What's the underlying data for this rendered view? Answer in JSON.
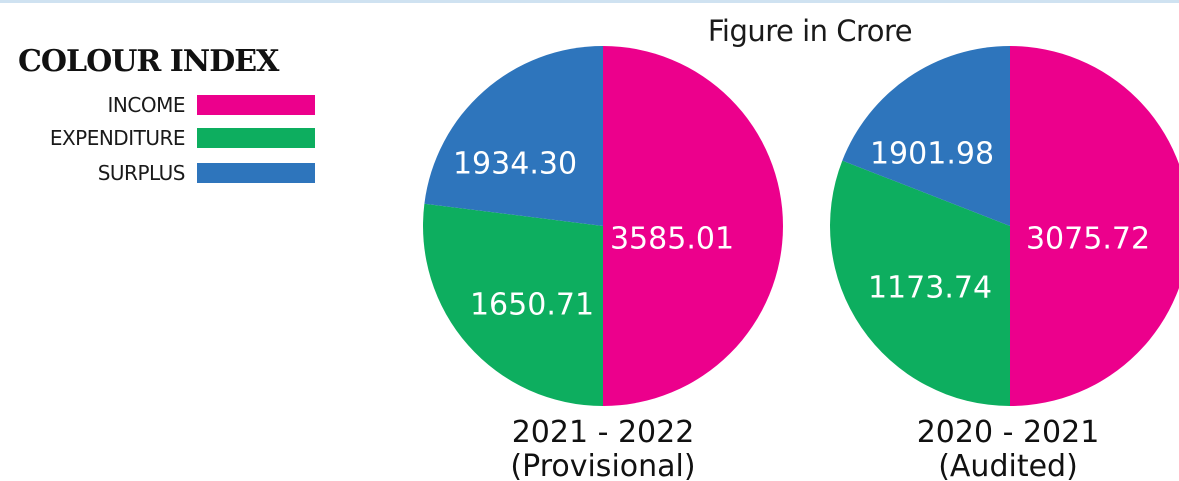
{
  "chart_data": {
    "type": "pie",
    "title": "Figure in Crore",
    "legend": {
      "title": "COLOUR INDEX",
      "position": "top-left",
      "items": [
        {
          "label": "INCOME",
          "color": "#ec008c"
        },
        {
          "label": "EXPENDITURE",
          "color": "#0dae5f"
        },
        {
          "label": "SURPLUS",
          "color": "#2e75bc"
        }
      ]
    },
    "pies": [
      {
        "caption_line1": "2021 - 2022",
        "caption_line2": "(Provisional)",
        "slices": [
          {
            "category": "INCOME",
            "value": 3585.01,
            "label": "3585.01",
            "color": "#ec008c"
          },
          {
            "category": "EXPENDITURE",
            "value": 1934.3,
            "label": "1934.30",
            "color": "#0dae5f"
          },
          {
            "category": "SURPLUS",
            "value": 1650.71,
            "label": "1650.71",
            "color": "#2e75bc"
          }
        ]
      },
      {
        "caption_line1": "2020 - 2021",
        "caption_line2": "(Audited)",
        "slices": [
          {
            "category": "INCOME",
            "value": 3075.72,
            "label": "3075.72",
            "color": "#ec008c"
          },
          {
            "category": "EXPENDITURE",
            "value": 1901.98,
            "label": "1901.98",
            "color": "#0dae5f"
          },
          {
            "category": "SURPLUS",
            "value": 1173.74,
            "label": "1173.74",
            "color": "#2e75bc"
          }
        ]
      }
    ]
  }
}
